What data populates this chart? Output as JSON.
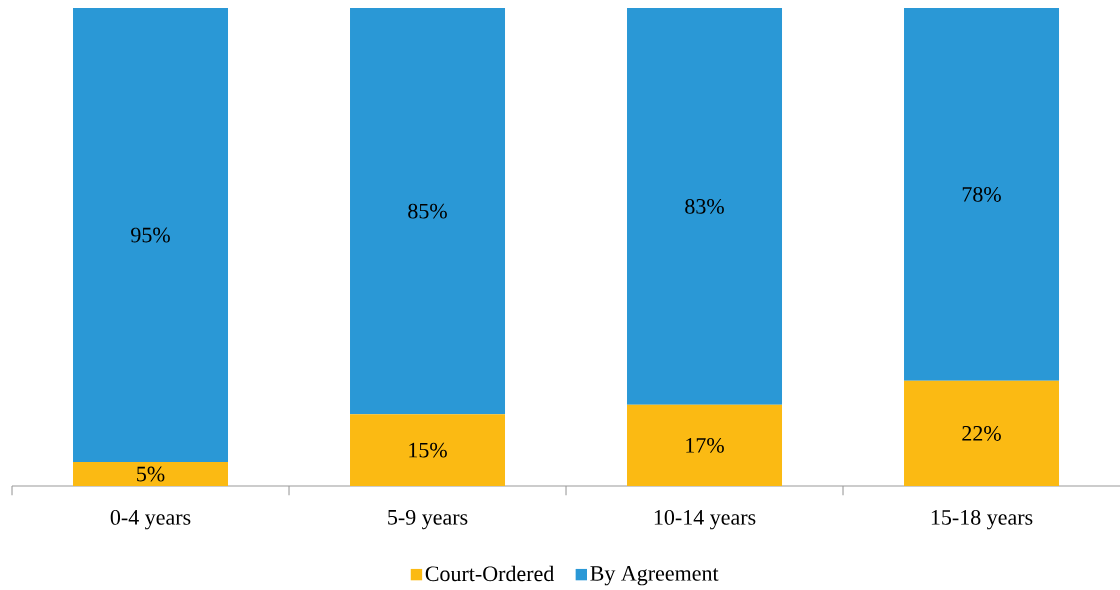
{
  "chart_data": {
    "type": "bar",
    "stacked": true,
    "categories": [
      "0-4 years",
      "5-9 years",
      "10-14 years",
      "15-18 years"
    ],
    "series": [
      {
        "name": "Court-Ordered",
        "color": "#fbba13",
        "values": [
          5,
          15,
          17,
          22
        ],
        "value_labels": [
          "5%",
          "15%",
          "17%",
          "22%"
        ]
      },
      {
        "name": "By Agreement",
        "color": "#2a98d6",
        "values": [
          95,
          85,
          83,
          78
        ],
        "value_labels": [
          "95%",
          "85%",
          "83%",
          "78%"
        ]
      }
    ],
    "legend": "bottom"
  }
}
